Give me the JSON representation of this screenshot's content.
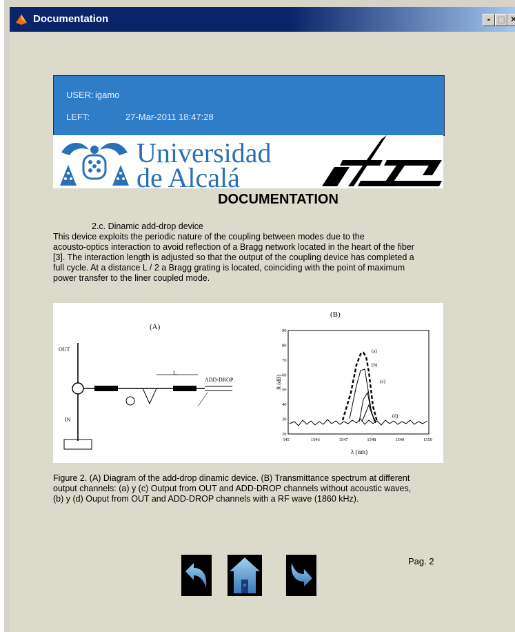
{
  "window": {
    "title": "Documentation",
    "controls": [
      "-",
      "□",
      "✕"
    ]
  },
  "user": {
    "user_label": "USER:",
    "user_value": "igamo",
    "left_label": "LEFT:",
    "left_value": "27-Mar-2011 18:47:28"
  },
  "logo": {
    "line1": "Universidad",
    "line2": "de Alcalá"
  },
  "doc_title": "DOCUMENTATION",
  "section_title": "2.c. Dinamic add-drop device",
  "paragraph": [
    "This device exploits the periodic nature of the coupling between modes due to the",
    "acousto-optics interaction to avoid reflection of a Bragg network located in the heart of the fiber",
    "[3]. The interaction length is adjusted so that the output of the coupling device has completed a",
    "full cycle. At a distance L / 2 a Bragg grating is located, coinciding with the point of maximum",
    "power transfer to the liner coupled mode."
  ],
  "figure": {
    "left_label": "(A)",
    "right_label": "(B)",
    "diagram_labels": {
      "out": "OUT",
      "add_drop": "ADD-DROP",
      "in": "IN",
      "l": "L"
    },
    "plot": {
      "y_label": "R (dB)",
      "x_label": "λ (nm)",
      "x_ticks": [
        "545",
        "1546",
        "1547",
        "1548",
        "1549",
        "1550"
      ],
      "y_ticks": [
        "20",
        "30",
        "40",
        "50",
        "60",
        "70",
        "80",
        "90"
      ],
      "curve_labels": [
        "(a)",
        "(b)",
        "(c)",
        "(d)"
      ]
    }
  },
  "caption": [
    "Figure 2. (A) Diagram of the add-drop dinamic device. (B) Transmittance spectrum at different",
    "output channels: (a) y (c) Output from OUT and ADD-DROP channels without acoustic waves,",
    "(b) y (d) Ouput from OUT and ADD-DROP channels with a RF wave (1860 kHz)."
  ],
  "nav": {
    "back": "back-arrow-icon",
    "home": "home-icon",
    "forward": "forward-arrow-icon"
  },
  "page_label": "Pag. 2",
  "colors": {
    "titlebar": "#0a246a",
    "userbox": "#2f7cc7",
    "background": "#dcdacb",
    "logo_text": "#2b6fb6"
  }
}
